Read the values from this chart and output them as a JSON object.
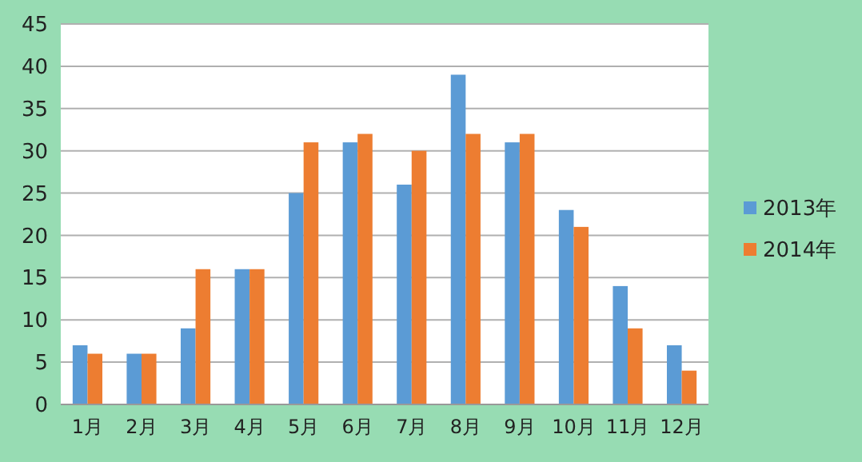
{
  "chart_data": {
    "type": "bar",
    "categories": [
      "1月",
      "2月",
      "3月",
      "4月",
      "5月",
      "6月",
      "7月",
      "8月",
      "9月",
      "10月",
      "11月",
      "12月"
    ],
    "series": [
      {
        "name": "2013年",
        "color": "#5b9bd5",
        "values": [
          7,
          6,
          9,
          16,
          25,
          31,
          26,
          39,
          31,
          23,
          14,
          7
        ]
      },
      {
        "name": "2014年",
        "color": "#ed7d31",
        "values": [
          6,
          6,
          16,
          16,
          31,
          32,
          30,
          32,
          32,
          21,
          9,
          4
        ]
      }
    ],
    "ylim": [
      0,
      45
    ],
    "yticks": [
      0,
      5,
      10,
      15,
      20,
      25,
      30,
      35,
      40,
      45
    ],
    "grid": "y",
    "legend": "right"
  }
}
